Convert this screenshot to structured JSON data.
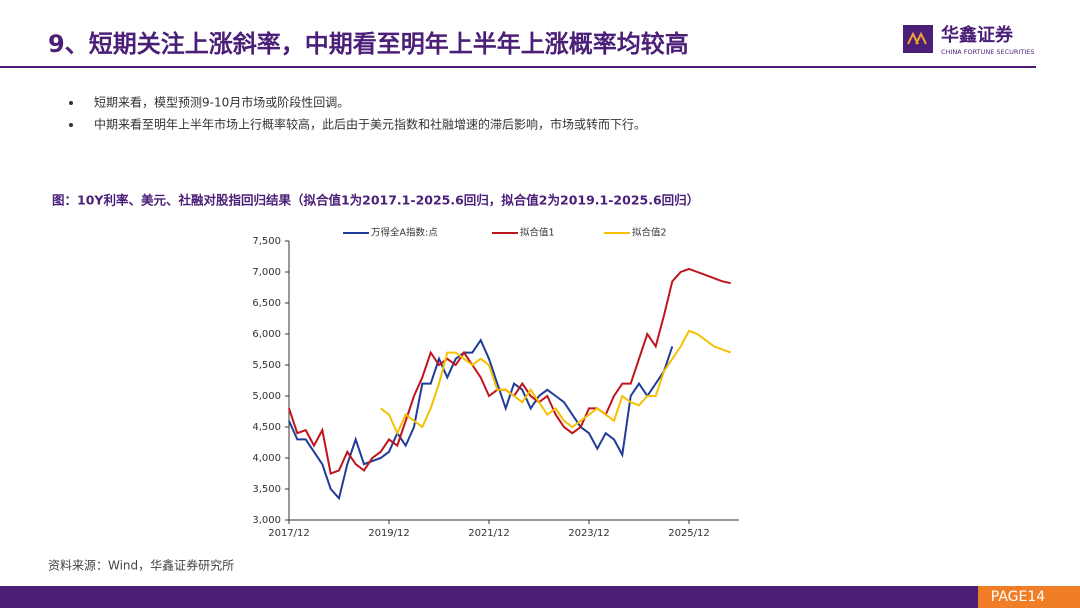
{
  "header": {
    "title": "9、短期关注上涨斜率，中期看至明年上半年上涨概率均较高",
    "logo_name": "华鑫证券",
    "logo_subtitle": "CHINA FORTUNE SECURITIES"
  },
  "bullets": [
    "短期来看，模型预测9-10月市场或阶段性回调。",
    "中期来看至明年上半年市场上行概率较高，此后由于美元指数和社融增速的滞后影响，市场或转而下行。"
  ],
  "source": "资料来源：Wind，华鑫证券研究所",
  "page": "PAGE14",
  "chart_data": {
    "type": "line",
    "title": "图：10Y利率、美元、社融对股指回归结果（拟合值1为2017.1-2025.6回归，拟合值2为2019.1-2025.6回归）",
    "categories": [
      "2017/12",
      null,
      null,
      null,
      null,
      null,
      null,
      null,
      null,
      null,
      null,
      null,
      "2019/12",
      null,
      null,
      null,
      null,
      null,
      null,
      null,
      null,
      null,
      null,
      null,
      "2021/12",
      null,
      null,
      null,
      null,
      null,
      null,
      null,
      null,
      null,
      null,
      null,
      "2023/12",
      null,
      null,
      null,
      null,
      null,
      null,
      null,
      null,
      null,
      null,
      null,
      "2025/12",
      null,
      null,
      null,
      null,
      null,
      null
    ],
    "series": [
      {
        "name": "万得全A指数:点",
        "color": "#1f3c99",
        "values": [
          4600,
          4300,
          4300,
          4100,
          3900,
          3500,
          3350,
          3900,
          4300,
          3900,
          3950,
          4000,
          4100,
          4400,
          4200,
          4500,
          5200,
          5200,
          5600,
          5300,
          5600,
          5700,
          5700,
          5900,
          5600,
          5200,
          4800,
          5200,
          5100,
          4800,
          5000,
          5100,
          5000,
          4900,
          4700,
          4500,
          4400,
          4150,
          4400,
          4300,
          4050,
          5000,
          5200,
          5000,
          5200,
          5400,
          5800,
          null,
          null,
          null,
          null,
          null,
          null,
          null,
          null
        ]
      },
      {
        "name": "拟合值1",
        "color": "#c0141c",
        "values": [
          4800,
          4400,
          4450,
          4200,
          4450,
          3750,
          3800,
          4100,
          3900,
          3800,
          4000,
          4100,
          4300,
          4200,
          4600,
          5000,
          5300,
          5700,
          5500,
          5600,
          5500,
          5700,
          5500,
          5300,
          5000,
          5100,
          5100,
          5000,
          5200,
          5000,
          4900,
          5000,
          4700,
          4500,
          4400,
          4500,
          4800,
          4800,
          4700,
          5000,
          5200,
          5200,
          5600,
          6000,
          5800,
          6300,
          6850,
          7000,
          7050,
          7000,
          6950,
          6900,
          6850,
          6820,
          null
        ]
      },
      {
        "name": "拟合值2",
        "color": "#f5c000",
        "values": [
          null,
          null,
          null,
          null,
          null,
          null,
          null,
          null,
          null,
          null,
          null,
          4800,
          4700,
          4400,
          4700,
          4600,
          4500,
          4800,
          5200,
          5700,
          5700,
          5600,
          5500,
          5600,
          5500,
          5100,
          5100,
          5000,
          4900,
          5100,
          4900,
          4700,
          4800,
          4600,
          4500,
          4600,
          4700,
          4800,
          4700,
          4600,
          5000,
          4900,
          4850,
          5000,
          5000,
          5400,
          5600,
          5800,
          6050,
          6000,
          5900,
          5800,
          5750,
          5700,
          null
        ]
      }
    ],
    "ylim": [
      3000,
      7500
    ],
    "yticks": [
      {
        "value": 3000,
        "label": "3,000"
      },
      {
        "value": 3500,
        "label": "3,500"
      },
      {
        "value": 4000,
        "label": "4,000"
      },
      {
        "value": 4500,
        "label": "4,500"
      },
      {
        "value": 5000,
        "label": "5,000"
      },
      {
        "value": 5500,
        "label": "5,500"
      },
      {
        "value": 6000,
        "label": "6,000"
      },
      {
        "value": 6500,
        "label": "6,500"
      },
      {
        "value": 7000,
        "label": "7,000"
      },
      {
        "value": 7500,
        "label": "7,500"
      }
    ],
    "legend": "top"
  }
}
